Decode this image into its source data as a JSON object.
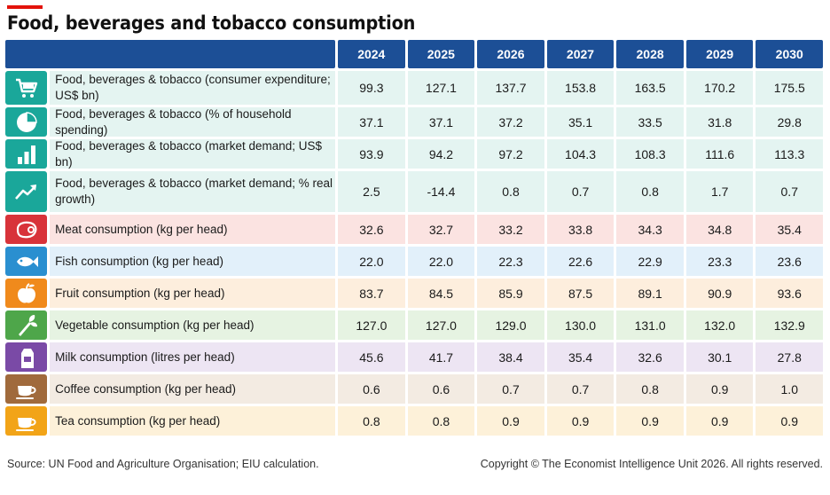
{
  "title": "Food, beverages and tobacco consumption",
  "source": "Source: UN Food and Agriculture Organisation; EIU calculation.",
  "copyright": "Copyright © The Economist Intelligence Unit 2026. All rights reserved.",
  "colors": {
    "header": "#1c4f96",
    "accent_red": "#e3120b"
  },
  "chart_data": {
    "type": "table",
    "columns": [
      "2024",
      "2025",
      "2026",
      "2027",
      "2028",
      "2029",
      "2030"
    ],
    "rows": [
      {
        "label": "Food, beverages & tobacco (consumer expenditure; US$ bn)",
        "icon": "shopping-cart-icon",
        "values": [
          "99.3",
          "127.1",
          "137.7",
          "153.8",
          "163.5",
          "170.2",
          "175.5"
        ]
      },
      {
        "label": "Food, beverages & tobacco (% of household spending)",
        "icon": "pie-chart-icon",
        "values": [
          "37.1",
          "37.1",
          "37.2",
          "35.1",
          "33.5",
          "31.8",
          "29.8"
        ]
      },
      {
        "label": "Food, beverages & tobacco (market demand; US$ bn)",
        "icon": "bar-chart-icon",
        "values": [
          "93.9",
          "94.2",
          "97.2",
          "104.3",
          "108.3",
          "111.6",
          "113.3"
        ]
      },
      {
        "label": "Food, beverages & tobacco (market demand; % real growth)",
        "icon": "trend-up-icon",
        "values": [
          "2.5",
          "-14.4",
          "0.8",
          "0.7",
          "0.8",
          "1.7",
          "0.7"
        ]
      },
      {
        "label": "Meat consumption (kg per head)",
        "icon": "meat-icon",
        "values": [
          "32.6",
          "32.7",
          "33.2",
          "33.8",
          "34.3",
          "34.8",
          "35.4"
        ]
      },
      {
        "label": "Fish consumption (kg per head)",
        "icon": "fish-icon",
        "values": [
          "22.0",
          "22.0",
          "22.3",
          "22.6",
          "22.9",
          "23.3",
          "23.6"
        ]
      },
      {
        "label": "Fruit consumption (kg per head)",
        "icon": "apple-icon",
        "values": [
          "83.7",
          "84.5",
          "85.9",
          "87.5",
          "89.1",
          "90.9",
          "93.6"
        ]
      },
      {
        "label": "Vegetable consumption (kg per head)",
        "icon": "vegetable-icon",
        "values": [
          "127.0",
          "127.0",
          "129.0",
          "130.0",
          "131.0",
          "132.0",
          "132.9"
        ]
      },
      {
        "label": "Milk consumption (litres per head)",
        "icon": "milk-carton-icon",
        "values": [
          "45.6",
          "41.7",
          "38.4",
          "35.4",
          "32.6",
          "30.1",
          "27.8"
        ]
      },
      {
        "label": "Coffee consumption (kg per head)",
        "icon": "coffee-cup-icon",
        "values": [
          "0.6",
          "0.6",
          "0.7",
          "0.7",
          "0.8",
          "0.9",
          "1.0"
        ]
      },
      {
        "label": "Tea consumption (kg per head)",
        "icon": "tea-cup-icon",
        "values": [
          "0.8",
          "0.8",
          "0.9",
          "0.9",
          "0.9",
          "0.9",
          "0.9"
        ]
      }
    ]
  },
  "row_styles": [
    {
      "icon_bg": "#1aa79a",
      "row_bg": "#e4f4f1"
    },
    {
      "icon_bg": "#1aa79a",
      "row_bg": "#e4f4f1"
    },
    {
      "icon_bg": "#1aa79a",
      "row_bg": "#e4f4f1"
    },
    {
      "icon_bg": "#1aa79a",
      "row_bg": "#e4f4f1"
    },
    {
      "icon_bg": "#d8333a",
      "row_bg": "#fbe3e1"
    },
    {
      "icon_bg": "#2a8fd0",
      "row_bg": "#e2f0fa"
    },
    {
      "icon_bg": "#f08a1c",
      "row_bg": "#fdeedd"
    },
    {
      "icon_bg": "#4ea64a",
      "row_bg": "#e6f3e2"
    },
    {
      "icon_bg": "#7a4aa6",
      "row_bg": "#ede5f3"
    },
    {
      "icon_bg": "#a06a3c",
      "row_bg": "#f3ebe2"
    },
    {
      "icon_bg": "#f2a418",
      "row_bg": "#fdf1d9"
    }
  ]
}
